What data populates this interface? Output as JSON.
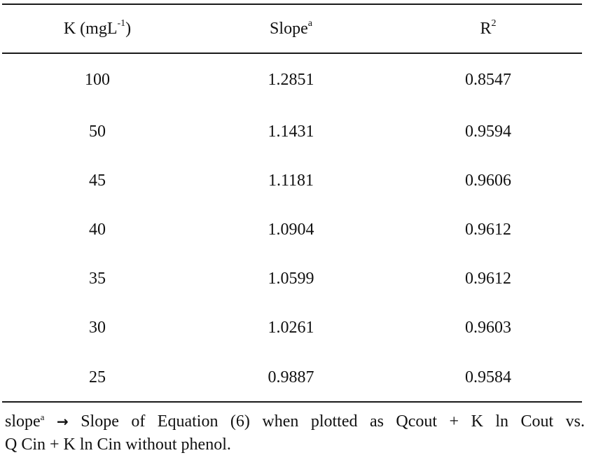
{
  "table": {
    "headers": {
      "k_base": "K (mgL",
      "k_sup": "-1",
      "k_close": ")",
      "slope_base": "Slope",
      "slope_sup": "a",
      "r_base": "R",
      "r_sup": "2"
    },
    "rows": [
      {
        "k": "100",
        "slope": "1.2851",
        "r2": "0.8547"
      },
      {
        "k": "50",
        "slope": "1.1431",
        "r2": "0.9594"
      },
      {
        "k": "45",
        "slope": "1.1181",
        "r2": "0.9606"
      },
      {
        "k": "40",
        "slope": "1.0904",
        "r2": "0.9612"
      },
      {
        "k": "35",
        "slope": "1.0599",
        "r2": "0.9612"
      },
      {
        "k": "30",
        "slope": "1.0261",
        "r2": "0.9603"
      },
      {
        "k": "25",
        "slope": "0.9887",
        "r2": "0.9584"
      }
    ]
  },
  "footnote": {
    "term": "slope",
    "term_sup": "a",
    "arrow": "→",
    "line1_rest": "Slope of Equation (6) when plotted as Qcout + K ln Cout vs.",
    "line2": "Q Cin + K ln Cin without phenol."
  }
}
